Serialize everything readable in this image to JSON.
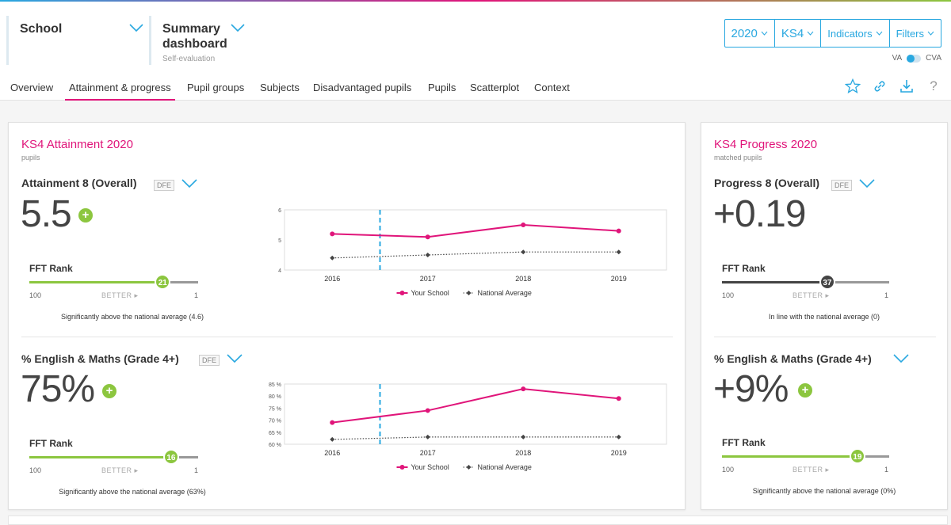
{
  "header": {
    "school_selector": {
      "label": "School"
    },
    "dashboard_selector": {
      "label_line1": "Summary",
      "label_line2": "dashboard",
      "sub": "Self-evaluation"
    },
    "year": "2020",
    "stage": "KS4",
    "indicators": "Indicators",
    "filters": "Filters",
    "va": "VA",
    "cva": "CVA"
  },
  "nav": {
    "tabs": [
      "Overview",
      "Attainment & progress",
      "Pupil groups",
      "Subjects",
      "Disadvantaged pupils",
      "Pupils",
      "Scatterplot",
      "Context"
    ],
    "active": 1,
    "icons": [
      "star-icon",
      "link-icon",
      "download-icon",
      "help-icon"
    ],
    "help_glyph": "?"
  },
  "colors": {
    "accent": "#e0157a",
    "blue": "#29a8e0",
    "green": "#8cc63f",
    "dark": "#444444"
  },
  "attainment": {
    "title": "KS4 Attainment 2020",
    "sub": "pupils",
    "metric1": {
      "name": "Attainment 8 (Overall)",
      "dfe": "DFE",
      "value": "5.5",
      "plus": "+",
      "rank_label": "FFT Rank",
      "rank": "21",
      "rank_fraction": 0.79,
      "rank_low": "100",
      "rank_high": "1",
      "better": "BETTER ▸",
      "desc": "Significantly above the national average (4.6)"
    },
    "metric2": {
      "name": "% English & Maths (Grade 4+)",
      "dfe": "DFE",
      "value": "75%",
      "plus": "+",
      "rank_label": "FFT Rank",
      "rank": "16",
      "rank_fraction": 0.84,
      "rank_low": "100",
      "rank_high": "1",
      "better": "BETTER ▸",
      "desc": "Significantly above the national average (63%)"
    }
  },
  "progress": {
    "title": "KS4 Progress 2020",
    "sub": "matched pupils",
    "metric1": {
      "name": "Progress 8 (Overall)",
      "dfe": "DFE",
      "value": "+0.19",
      "rank_label": "FFT Rank",
      "rank": "37",
      "rank_fraction": 0.63,
      "rank_low": "100",
      "rank_high": "1",
      "better": "BETTER ▸",
      "desc": "In line with the national average (0)"
    },
    "metric2": {
      "name": "% English & Maths (Grade 4+)",
      "value": "+9%",
      "plus": "+",
      "rank_label": "FFT Rank",
      "rank": "19",
      "rank_fraction": 0.81,
      "rank_low": "100",
      "rank_high": "1",
      "better": "BETTER ▸",
      "desc": "Significantly above the national average (0%)"
    }
  },
  "chart_data": [
    {
      "type": "line",
      "categories": [
        "2016",
        "2017",
        "2018",
        "2019"
      ],
      "ylim": [
        4,
        6
      ],
      "yticks": [
        "4",
        "5",
        "6"
      ],
      "series": [
        {
          "name": "Your School",
          "values": [
            5.2,
            5.1,
            5.5,
            5.3
          ],
          "color": "#e0157a"
        },
        {
          "name": "National Average",
          "values": [
            4.4,
            4.5,
            4.6,
            4.6
          ],
          "color": "#444444"
        }
      ]
    },
    {
      "type": "line",
      "categories": [
        "2016",
        "2017",
        "2018",
        "2019"
      ],
      "ylim": [
        60,
        85
      ],
      "yticks": [
        "60 %",
        "65 %",
        "70 %",
        "75 %",
        "80 %",
        "85 %"
      ],
      "series": [
        {
          "name": "Your School",
          "values": [
            69,
            74,
            83,
            79
          ],
          "color": "#e0157a"
        },
        {
          "name": "National Average",
          "values": [
            62,
            63,
            63,
            63
          ],
          "color": "#444444"
        }
      ]
    }
  ]
}
